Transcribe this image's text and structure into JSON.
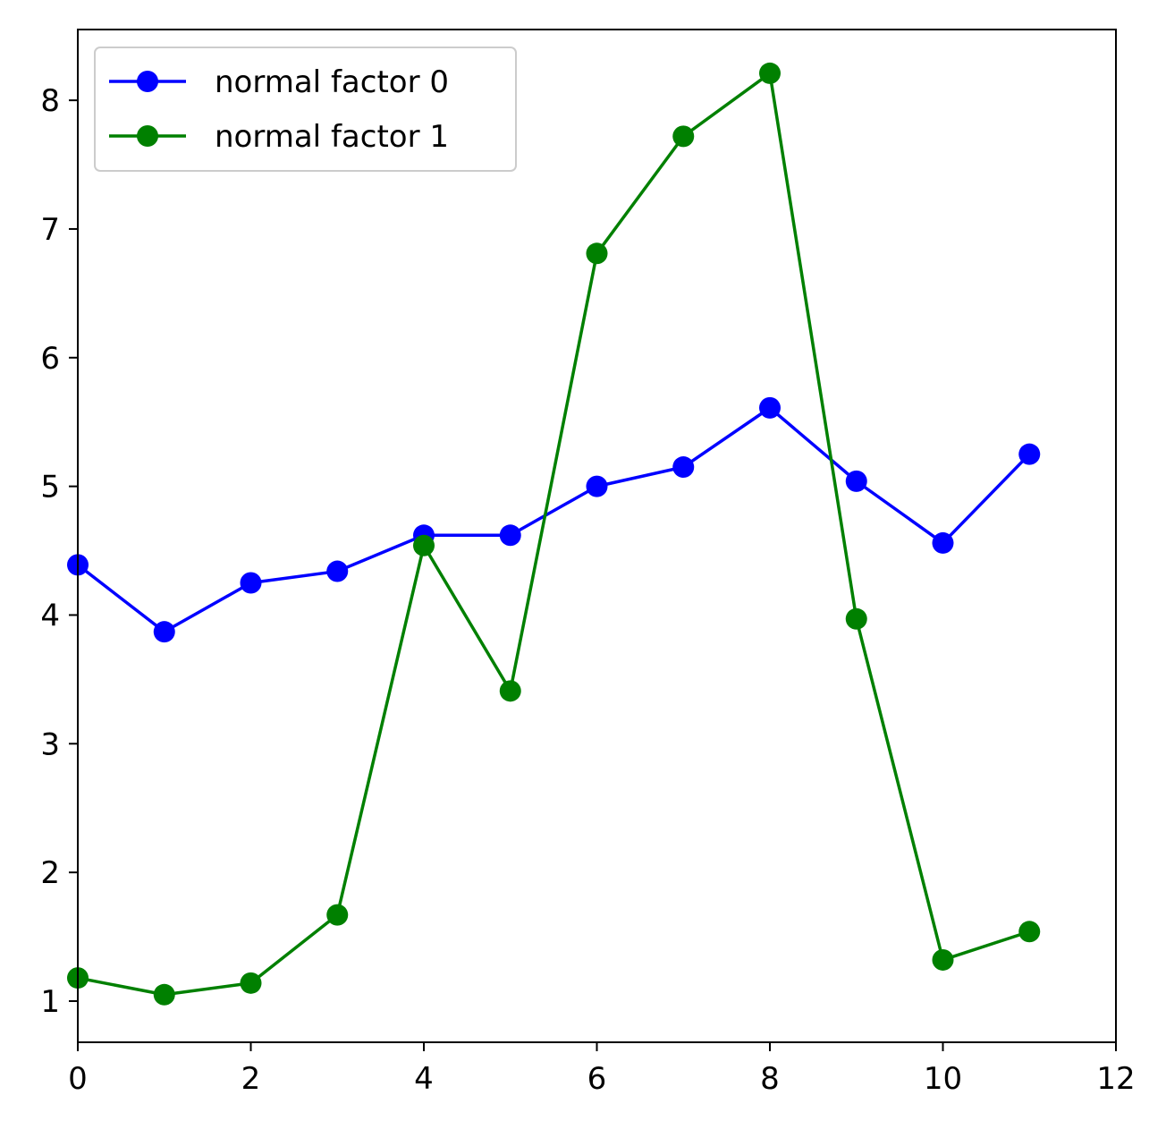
{
  "chart_data": {
    "type": "line",
    "title": "",
    "xlabel": "",
    "ylabel": "",
    "xlim": [
      0,
      12
    ],
    "ylim": [
      0.68,
      8.55
    ],
    "xticks": [
      0,
      2,
      4,
      6,
      8,
      10,
      12
    ],
    "yticks": [
      1,
      2,
      3,
      4,
      5,
      6,
      7,
      8
    ],
    "grid": false,
    "legend_position": "top-left",
    "x": [
      0,
      1,
      2,
      3,
      4,
      5,
      6,
      7,
      8,
      9,
      10,
      11
    ],
    "series": [
      {
        "name": "normal factor 0",
        "color": "#0000ff",
        "marker": "circle",
        "values": [
          4.39,
          3.87,
          4.25,
          4.34,
          4.62,
          4.62,
          5.0,
          5.15,
          5.61,
          5.04,
          4.56,
          5.25
        ]
      },
      {
        "name": "normal factor 1",
        "color": "#008000",
        "marker": "circle",
        "values": [
          1.18,
          1.05,
          1.14,
          1.67,
          4.54,
          3.41,
          6.81,
          7.72,
          8.21,
          3.97,
          1.32,
          1.54
        ]
      }
    ]
  }
}
